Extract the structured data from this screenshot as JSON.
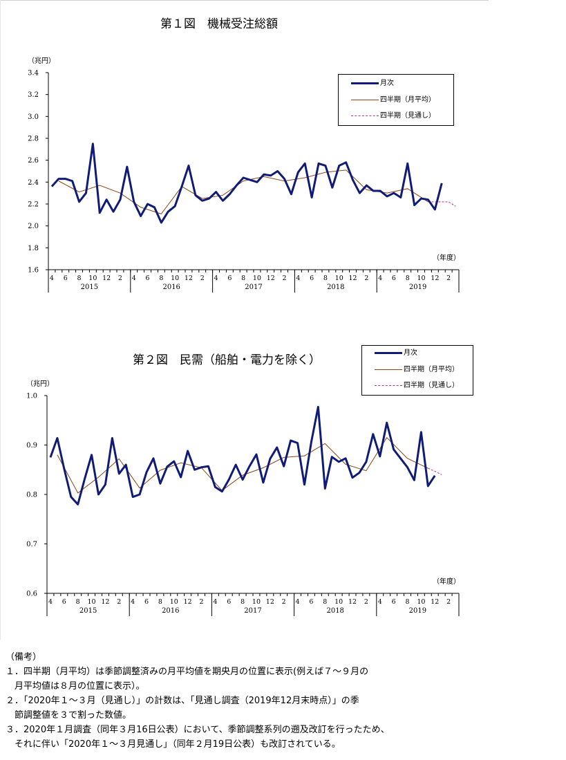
{
  "charts_text": [
    {
      "title": "第１図　機械受注総額",
      "unit": "（兆円）",
      "year_unit": "（年度）"
    },
    {
      "title": "第２図　民需（船舶・電力を除く）",
      "unit": "（兆円）",
      "year_unit": "（年度）"
    }
  ],
  "legend": {
    "monthly": "月次",
    "quarterly": "四半期（月平均）",
    "outlook": "四半期（見通し）"
  },
  "notes": {
    "heading": "（備考）",
    "lines": [
      "１．四半期（月平均）は季節調整済みの月平均値を期央月の位置に表示(例えば７～９月の",
      "　月平均値は８月の位置に表示）。",
      "２．「2020年１～３月（見通し）」の計数は、「見通し調査（2019年12月末時点）」の季",
      "　節調整値を３で割った数値。",
      "３．2020年１月調査（同年３月16日公表）において、季節調整系列の遡及改訂を行ったため、",
      "　それに伴い「2020年１～３月見通し」（同年２月19日公表）も改訂されている。"
    ]
  },
  "colors": {
    "monthly": "#0f1b77",
    "quarterly": "#8b4513",
    "outlook": "#b0309a"
  },
  "chart_data": [
    {
      "type": "line",
      "title": "第１図　機械受注総額",
      "ylabel": "（兆円）",
      "xlabel": "（年度）",
      "ylim": [
        1.6,
        3.4
      ],
      "yticks": [
        "1.6",
        "1.8",
        "2.0",
        "2.2",
        "2.4",
        "2.6",
        "2.8",
        "3.0",
        "3.2",
        "3.4"
      ],
      "month_labels": [
        "4",
        "",
        "6",
        "",
        "8",
        "",
        "10",
        "",
        "12",
        "",
        "2",
        ""
      ],
      "years": [
        "2015",
        "2016",
        "2017",
        "2018",
        "2019"
      ],
      "legend_position": "top-right",
      "series": [
        {
          "key": "monthly",
          "name": "月次",
          "start_index": 0,
          "values": [
            2.36,
            2.43,
            2.43,
            2.41,
            2.22,
            2.3,
            2.75,
            2.12,
            2.24,
            2.13,
            2.24,
            2.54,
            2.22,
            2.09,
            2.2,
            2.17,
            2.03,
            2.13,
            2.18,
            2.36,
            2.55,
            2.28,
            2.23,
            2.25,
            2.31,
            2.23,
            2.29,
            2.37,
            2.44,
            2.42,
            2.4,
            2.47,
            2.46,
            2.5,
            2.43,
            2.29,
            2.49,
            2.57,
            2.26,
            2.57,
            2.55,
            2.35,
            2.55,
            2.58,
            2.42,
            2.3,
            2.37,
            2.32,
            2.32,
            2.27,
            2.3,
            2.26,
            2.57,
            2.19,
            2.25,
            2.24,
            2.15,
            2.39
          ]
        },
        {
          "key": "quarterly",
          "name": "四半期（月平均）",
          "start_index": 1,
          "values": [
            2.41,
            2.31,
            2.37,
            2.3,
            2.17,
            2.11,
            2.36,
            2.25,
            2.28,
            2.41,
            2.45,
            2.41,
            2.44,
            2.49,
            2.51,
            2.33,
            2.3,
            2.34,
            2.22
          ]
        },
        {
          "key": "outlook",
          "name": "四半期（見通し）",
          "start_index": 58,
          "values": [
            2.22,
            2.18
          ]
        }
      ]
    },
    {
      "type": "line",
      "title": "第２図　民需（船舶・電力を除く）",
      "ylabel": "（兆円）",
      "xlabel": "（年度）",
      "ylim": [
        0.6,
        1.0
      ],
      "yticks": [
        "0.6",
        "0.7",
        "0.8",
        "0.9",
        "1.0"
      ],
      "month_labels": [
        "4",
        "",
        "6",
        "",
        "8",
        "",
        "10",
        "",
        "12",
        "",
        "2",
        ""
      ],
      "years": [
        "2015",
        "2016",
        "2017",
        "2018",
        "2019"
      ],
      "legend_position": "top-right",
      "series": [
        {
          "key": "monthly",
          "name": "月次",
          "start_index": 0,
          "values": [
            0.875,
            0.914,
            0.852,
            0.795,
            0.78,
            0.832,
            0.88,
            0.8,
            0.82,
            0.914,
            0.842,
            0.86,
            0.795,
            0.8,
            0.845,
            0.873,
            0.822,
            0.856,
            0.867,
            0.835,
            0.888,
            0.85,
            0.855,
            0.857,
            0.815,
            0.806,
            0.83,
            0.86,
            0.83,
            0.857,
            0.881,
            0.824,
            0.872,
            0.895,
            0.857,
            0.909,
            0.904,
            0.82,
            0.906,
            0.977,
            0.812,
            0.876,
            0.866,
            0.873,
            0.834,
            0.844,
            0.866,
            0.922,
            0.877,
            0.945,
            0.891,
            0.873,
            0.855,
            0.829,
            0.926,
            0.817,
            0.838
          ]
        },
        {
          "key": "quarterly",
          "name": "四半期（月平均）",
          "start_index": 1,
          "values": [
            0.88,
            0.803,
            0.835,
            0.872,
            0.813,
            0.849,
            0.864,
            0.854,
            0.808,
            0.839,
            0.854,
            0.875,
            0.878,
            0.903,
            0.861,
            0.848,
            0.915,
            0.873,
            0.853
          ]
        },
        {
          "key": "outlook",
          "name": "四半期（見通し）",
          "start_index": 56,
          "values": [
            0.847,
            0.84
          ]
        }
      ]
    }
  ]
}
